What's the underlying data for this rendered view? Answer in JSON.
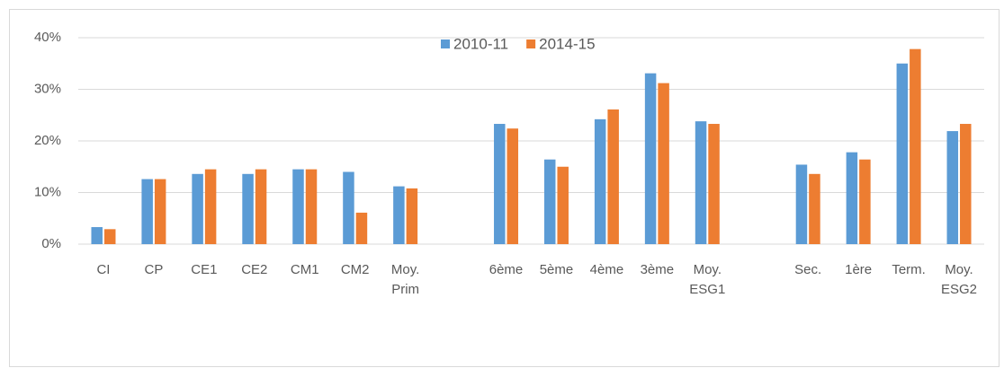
{
  "chart_data": {
    "type": "bar",
    "categories": [
      "CI",
      "CP",
      "CE1",
      "CE2",
      "CM1",
      "CM2",
      "Moy. Prim",
      null,
      "6ème",
      "5ème",
      "4ème",
      "3ème",
      "Moy. ESG1",
      null,
      "Sec.",
      "1ère",
      "Term.",
      "Moy. ESG2"
    ],
    "series": [
      {
        "name": "2010-11",
        "color": "#5b9bd5",
        "values": [
          3.3,
          12.6,
          13.6,
          13.6,
          14.5,
          14.0,
          11.2,
          null,
          23.3,
          16.4,
          24.2,
          33.1,
          23.8,
          null,
          15.4,
          17.8,
          35.0,
          21.9
        ]
      },
      {
        "name": "2014-15",
        "color": "#ed7d31",
        "values": [
          2.9,
          12.6,
          14.5,
          14.5,
          14.5,
          6.1,
          10.8,
          null,
          22.4,
          15.0,
          26.1,
          31.2,
          23.3,
          null,
          13.6,
          16.4,
          37.8,
          23.3
        ]
      }
    ],
    "ylim": [
      0,
      40
    ],
    "yticks": [
      {
        "value": 0,
        "label": "0%"
      },
      {
        "value": 10,
        "label": "10%"
      },
      {
        "value": 20,
        "label": "20%"
      },
      {
        "value": 30,
        "label": "30%"
      },
      {
        "value": 40,
        "label": "40%"
      }
    ],
    "grid": true,
    "legend": "top"
  }
}
